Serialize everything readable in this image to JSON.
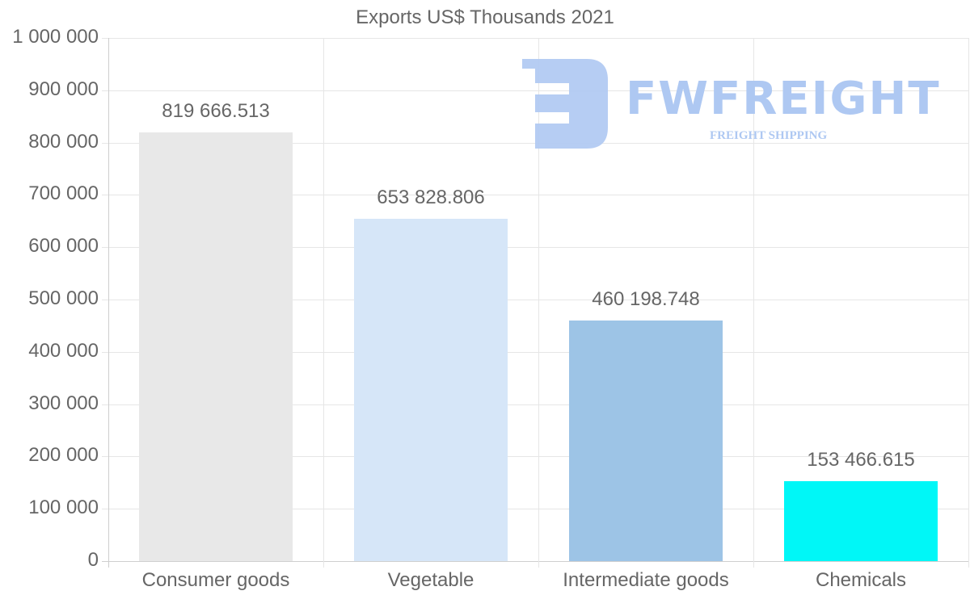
{
  "chart_data": {
    "type": "bar",
    "title": "Exports US$ Thousands 2021",
    "xlabel": "",
    "ylabel": "",
    "ylim": [
      0,
      1000000
    ],
    "grid": true,
    "legend": null,
    "categories": [
      "Consumer goods",
      "Vegetable",
      "Intermediate goods",
      "Chemicals"
    ],
    "values": [
      819666.513,
      653828.806,
      460198.748,
      153466.615
    ],
    "value_labels": [
      "819 666.513",
      "653 828.806",
      "460 198.748",
      "153 466.615"
    ],
    "colors": [
      "#e8e8e8",
      "#d6e6f8",
      "#9dc4e6",
      "#00f7f7"
    ],
    "yticks": [
      {
        "value": 0,
        "label": "0"
      },
      {
        "value": 100000,
        "label": "100 000"
      },
      {
        "value": 200000,
        "label": "200 000"
      },
      {
        "value": 300000,
        "label": "300 000"
      },
      {
        "value": 400000,
        "label": "400 000"
      },
      {
        "value": 500000,
        "label": "500 000"
      },
      {
        "value": 600000,
        "label": "600 000"
      },
      {
        "value": 700000,
        "label": "700 000"
      },
      {
        "value": 800000,
        "label": "800 000"
      },
      {
        "value": 900000,
        "label": "900 000"
      },
      {
        "value": 1000000,
        "label": "1 000 000"
      }
    ]
  },
  "watermark": {
    "brand": "FWFREIGHT",
    "tagline": "FREIGHT SHIPPING",
    "color": "#aec8f2"
  }
}
